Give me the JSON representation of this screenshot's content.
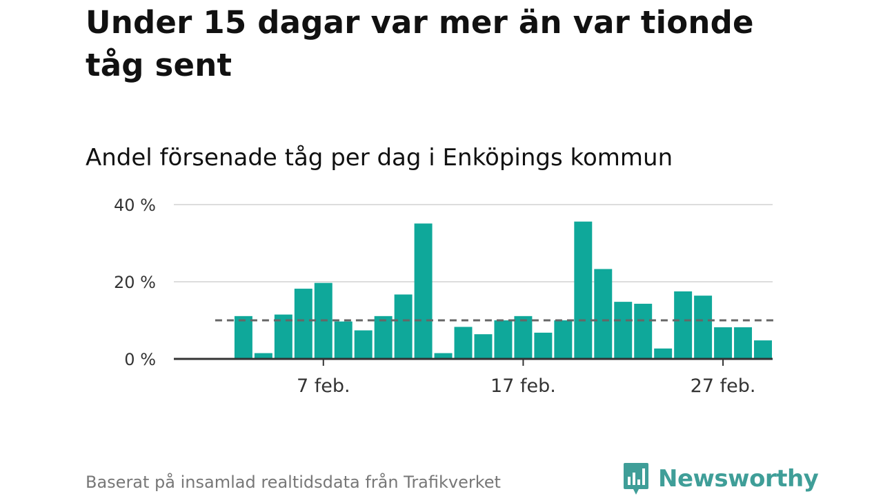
{
  "title": "Under 15 dagar var mer än var tionde tåg sent",
  "subtitle": "Andel försenade tåg per dag i Enköpings kommun",
  "source": "Baserat på insamlad realtidsdata från Trafikverket",
  "brand": {
    "name": "Newsworthy",
    "logo_icon": "bar-chart-speech-bubble-icon"
  },
  "colors": {
    "bar": "#0fa89a",
    "reference_line": "#666666",
    "grid": "#dddddd",
    "axis": "#333333",
    "brand": "#3f9e98"
  },
  "chart_data": {
    "type": "bar",
    "title": "Andel försenade tåg per dag i Enköpings kommun",
    "xlabel": "",
    "ylabel": "",
    "ylim": [
      0,
      40
    ],
    "y_ticks": [
      0,
      20,
      40
    ],
    "y_tick_labels": [
      "0 %",
      "20 %",
      "40 %"
    ],
    "x_ticks": [
      {
        "label": "7 feb.",
        "date": "2019-02-07"
      },
      {
        "label": "17 feb.",
        "date": "2019-02-17"
      },
      {
        "label": "27 feb.",
        "date": "2019-02-27"
      }
    ],
    "x_range": [
      "2019-01-31",
      "2019-03-01"
    ],
    "grid": true,
    "reference_line": {
      "value": 10,
      "style": "dashed"
    },
    "x": [
      "2019-02-03",
      "2019-02-04",
      "2019-02-05",
      "2019-02-06",
      "2019-02-07",
      "2019-02-08",
      "2019-02-09",
      "2019-02-10",
      "2019-02-11",
      "2019-02-12",
      "2019-02-13",
      "2019-02-14",
      "2019-02-15",
      "2019-02-16",
      "2019-02-17",
      "2019-02-18",
      "2019-02-19",
      "2019-02-20",
      "2019-02-21",
      "2019-02-22",
      "2019-02-23",
      "2019-02-24",
      "2019-02-25",
      "2019-02-26",
      "2019-02-27",
      "2019-02-28",
      "2019-03-01"
    ],
    "values": [
      11.1,
      1.5,
      11.5,
      18.2,
      19.7,
      9.7,
      7.4,
      11.1,
      16.7,
      35.1,
      1.5,
      8.3,
      6.4,
      10.0,
      11.1,
      6.8,
      10.0,
      35.6,
      23.3,
      14.8,
      14.3,
      2.7,
      17.5,
      16.4,
      8.2,
      8.2,
      4.8
    ]
  }
}
